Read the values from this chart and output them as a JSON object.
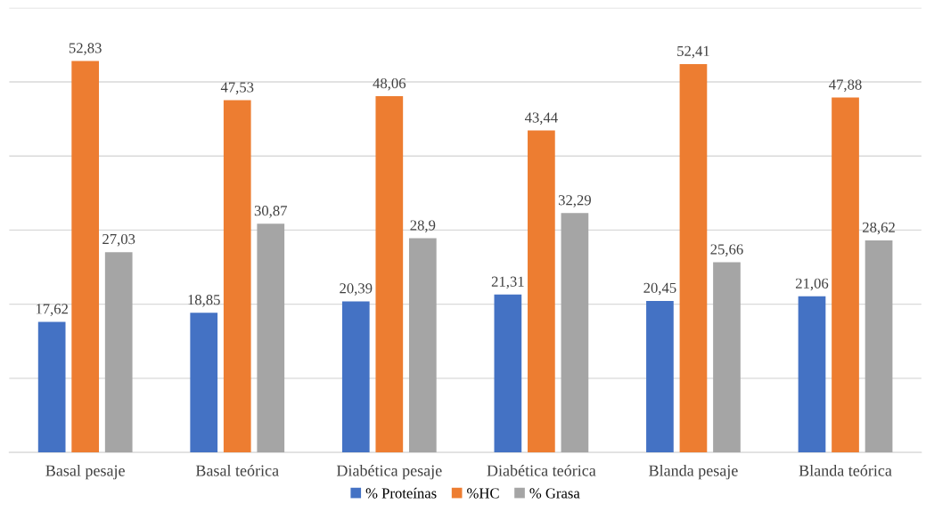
{
  "chart_data": {
    "type": "bar",
    "categories": [
      "Basal pesaje",
      "Basal teórica",
      "Diabética pesaje",
      "Diabética teórica",
      "Blanda pesaje",
      "Blanda teórica"
    ],
    "series": [
      {
        "name": "% Proteínas",
        "color": "#4472c4",
        "values": [
          17.62,
          18.85,
          20.39,
          21.31,
          20.45,
          21.06
        ],
        "value_labels": [
          "17,62",
          "18,85",
          "20,39",
          "21,31",
          "20,45",
          "21,06"
        ]
      },
      {
        "name": "%HC",
        "color": "#ed7d31",
        "values": [
          52.83,
          47.53,
          48.06,
          43.44,
          52.41,
          47.88
        ],
        "value_labels": [
          "52,83",
          "47,53",
          "48,06",
          "43,44",
          "52,41",
          "47,88"
        ]
      },
      {
        "name": "% Grasa",
        "color": "#a5a5a5",
        "values": [
          27.03,
          30.87,
          28.9,
          32.29,
          25.66,
          28.62
        ],
        "value_labels": [
          "27,03",
          "30,87",
          "28,9",
          "32,29",
          "25,66",
          "28,62"
        ]
      }
    ],
    "ylim": [
      0,
      60
    ],
    "yticks": [
      0,
      10,
      20,
      30,
      40,
      50,
      60
    ],
    "tick_labels": "x",
    "grid": "y",
    "legend": "bottom"
  }
}
